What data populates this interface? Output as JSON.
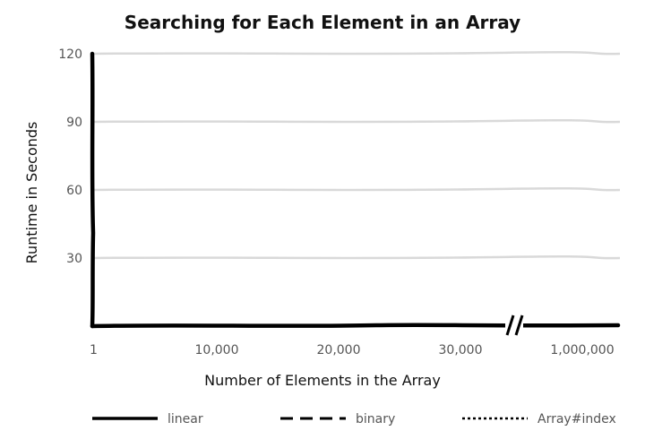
{
  "chart_data": {
    "type": "line",
    "title": "Searching for Each Element in an Array",
    "xlabel": "Number of Elements in the Array",
    "ylabel": "Runtime in Seconds",
    "x_ticks": [
      "1",
      "10,000",
      "20,000",
      "30,000",
      "1,000,000"
    ],
    "x_axis_break": true,
    "y_ticks": [
      "120",
      "90",
      "60",
      "30"
    ],
    "ylim": [
      0,
      120
    ],
    "grid": "horizontal",
    "legend_position": "bottom",
    "series": [
      {
        "name": "linear",
        "line_style": "solid"
      },
      {
        "name": "binary",
        "line_style": "dashed"
      },
      {
        "name": "Array#index",
        "line_style": "dotted"
      }
    ],
    "colors": {
      "axis": "#000000",
      "grid": "#d9d9d9",
      "text": "#555555",
      "title": "#111111"
    }
  }
}
